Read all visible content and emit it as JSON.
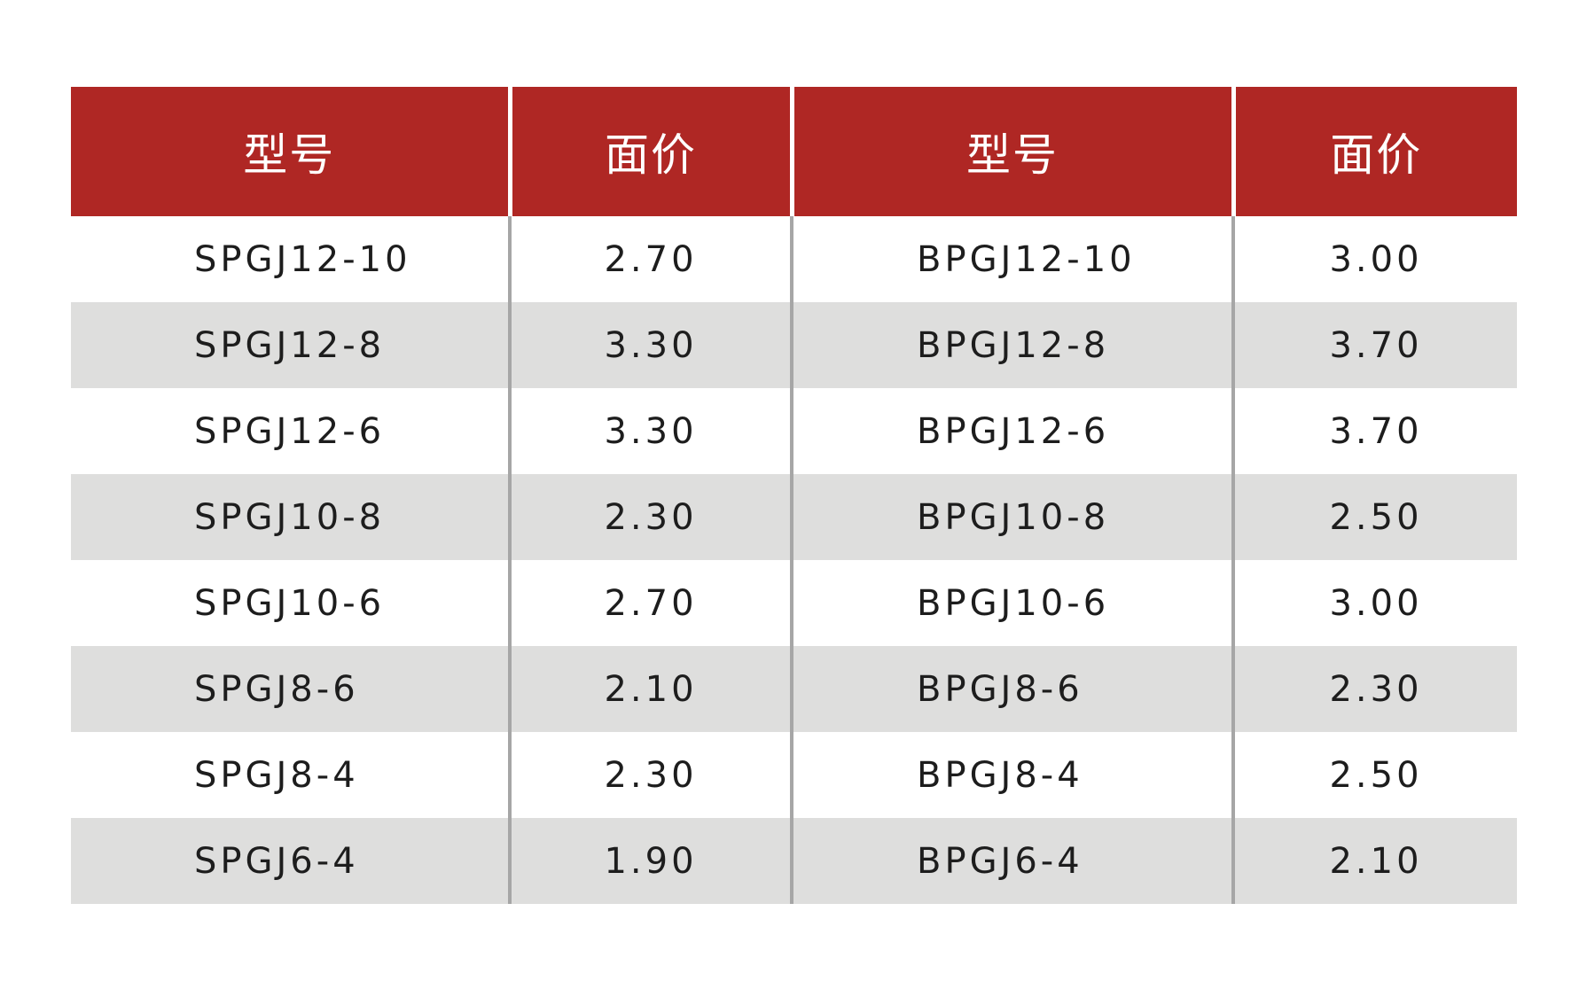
{
  "table": {
    "headers": [
      "型号",
      "面价",
      "型号",
      "面价"
    ],
    "rows": [
      [
        "SPGJ12-10",
        "2.70",
        "BPGJ12-10",
        "3.00"
      ],
      [
        "SPGJ12-8",
        "3.30",
        "BPGJ12-8",
        "3.70"
      ],
      [
        "SPGJ12-6",
        "3.30",
        "BPGJ12-6",
        "3.70"
      ],
      [
        "SPGJ10-8",
        "2.30",
        "BPGJ10-8",
        "2.50"
      ],
      [
        "SPGJ10-6",
        "2.70",
        "BPGJ10-6",
        "3.00"
      ],
      [
        "SPGJ8-6",
        "2.10",
        "BPGJ8-6",
        "2.30"
      ],
      [
        "SPGJ8-4",
        "2.30",
        "BPGJ8-4",
        "2.50"
      ],
      [
        "SPGJ6-4",
        "1.90",
        "BPGJ6-4",
        "2.10"
      ]
    ]
  },
  "colors": {
    "header_bg": "#af2724",
    "header_text": "#ffffff",
    "stripe": "#dededd",
    "divider": "#a6a6a6",
    "body_text": "#1d1d1d"
  }
}
